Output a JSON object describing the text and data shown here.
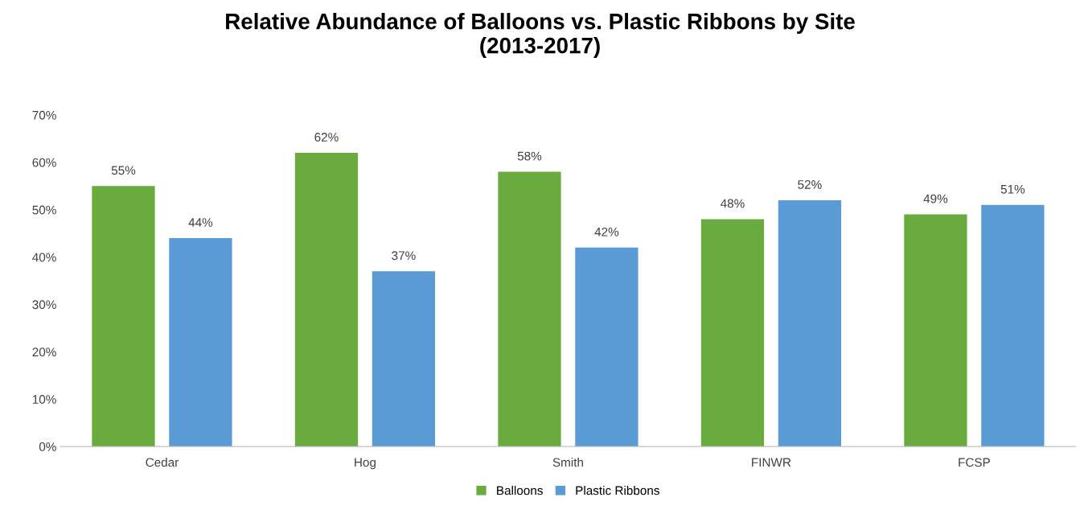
{
  "chart_data": {
    "type": "bar",
    "title": "Relative Abundance of Balloons vs. Plastic Ribbons by Site\n(2013-2017)",
    "categories": [
      "Cedar",
      "Hog",
      "Smith",
      "FINWR",
      "FCSP"
    ],
    "series": [
      {
        "name": "Balloons",
        "color": "#6aab3f",
        "values": [
          55,
          62,
          58,
          48,
          49
        ],
        "value_labels": [
          "55%",
          "62%",
          "58%",
          "48%",
          "49%"
        ]
      },
      {
        "name": "Plastic Ribbons",
        "color": "#5b9bd5",
        "values": [
          44,
          37,
          42,
          52,
          51
        ],
        "value_labels": [
          "44%",
          "37%",
          "42%",
          "52%",
          "51%"
        ]
      }
    ],
    "ylim": [
      0,
      70
    ],
    "yticks": [
      {
        "value": 0,
        "label": "0%"
      },
      {
        "value": 10,
        "label": "10%"
      },
      {
        "value": 20,
        "label": "20%"
      },
      {
        "value": 30,
        "label": "30%"
      },
      {
        "value": 40,
        "label": "40%"
      },
      {
        "value": 50,
        "label": "50%"
      },
      {
        "value": 60,
        "label": "60%"
      },
      {
        "value": 70,
        "label": "70%"
      }
    ],
    "grid": false,
    "legend": "bottom"
  }
}
